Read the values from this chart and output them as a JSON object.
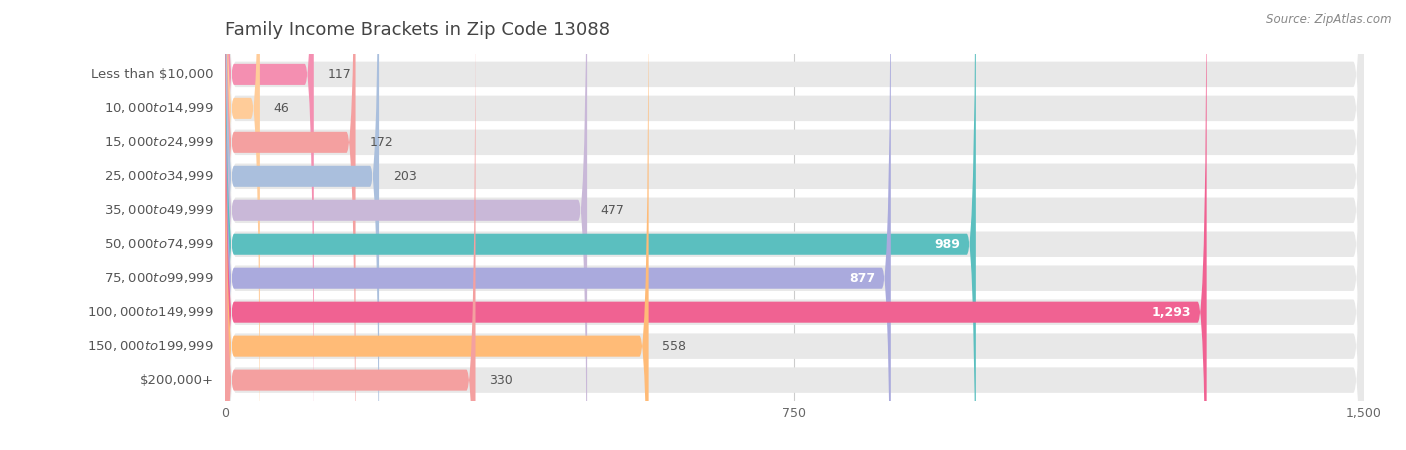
{
  "title": "Family Income Brackets in Zip Code 13088",
  "source_text": "Source: ZipAtlas.com",
  "categories": [
    "Less than $10,000",
    "$10,000 to $14,999",
    "$15,000 to $24,999",
    "$25,000 to $34,999",
    "$35,000 to $49,999",
    "$50,000 to $74,999",
    "$75,000 to $99,999",
    "$100,000 to $149,999",
    "$150,000 to $199,999",
    "$200,000+"
  ],
  "values": [
    117,
    46,
    172,
    203,
    477,
    989,
    877,
    1293,
    558,
    330
  ],
  "bar_colors": [
    "#F48FB1",
    "#FFCC99",
    "#F4A0A0",
    "#AABFDD",
    "#C9B8D8",
    "#5BBFBF",
    "#AAAADD",
    "#F06292",
    "#FFBB77",
    "#F4A0A0"
  ],
  "xlim": [
    0,
    1500
  ],
  "xticks": [
    0,
    750,
    1500
  ],
  "background_color": "#ffffff",
  "bar_bg_color": "#e8e8e8",
  "title_fontsize": 13,
  "label_fontsize": 9.5,
  "value_fontsize": 9,
  "source_fontsize": 8.5
}
